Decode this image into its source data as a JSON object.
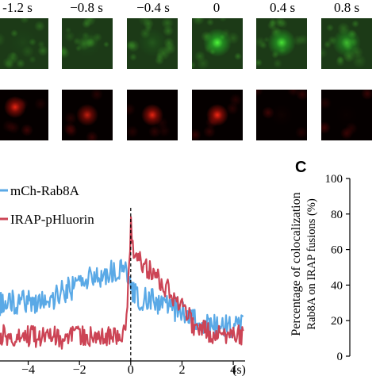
{
  "time_labels": [
    "-1.2 s",
    "−0.8 s",
    "−0.4 s",
    "0",
    "0.4 s",
    "0.8 s"
  ],
  "tiles": {
    "green_intensity": [
      0.05,
      0.08,
      0.15,
      0.95,
      0.85,
      0.65
    ],
    "red_intensity": [
      0.9,
      0.75,
      0.9,
      0.95,
      0.04,
      0.02
    ]
  },
  "colors": {
    "rab8a": "#5aa9e6",
    "irap": "#cc4455",
    "green": "#39e23a",
    "red": "#ff2a12"
  },
  "panel_c": {
    "letter": "C",
    "ylabel_line1": "Percentage of colocalization",
    "ylabel_line2": "Rab8A on IRAP fusions (%)",
    "ylim": [
      0,
      100
    ],
    "ticks": [
      "0",
      "20",
      "40",
      "60",
      "80",
      "100"
    ]
  },
  "chart_data": {
    "type": "line",
    "title": "",
    "xlabel": "(s)",
    "ylabel": "",
    "xlim": [
      -5.1,
      4.4
    ],
    "ylim": [
      0,
      1
    ],
    "x_ticks": [
      "−4",
      "−2",
      "0",
      "2",
      "4"
    ],
    "legend_position": "top-left",
    "event_marker_x": 0,
    "x": [
      -5.0,
      -4.5,
      -4.0,
      -3.5,
      -3.0,
      -2.5,
      -2.0,
      -1.5,
      -1.0,
      -0.5,
      -0.2,
      0.0,
      0.2,
      0.5,
      1.0,
      1.5,
      2.0,
      2.5,
      3.0,
      3.5,
      4.0,
      4.3
    ],
    "series": [
      {
        "name": "mCh-Rab8A",
        "values": [
          0.38,
          0.4,
          0.41,
          0.4,
          0.43,
          0.48,
          0.53,
          0.57,
          0.59,
          0.61,
          0.62,
          0.48,
          0.44,
          0.42,
          0.4,
          0.37,
          0.33,
          0.28,
          0.25,
          0.23,
          0.23,
          0.23
        ]
      },
      {
        "name": "IRAP-pHluorin",
        "values": [
          0.17,
          0.18,
          0.17,
          0.16,
          0.17,
          0.15,
          0.18,
          0.17,
          0.18,
          0.17,
          0.2,
          0.82,
          0.7,
          0.64,
          0.58,
          0.48,
          0.35,
          0.24,
          0.2,
          0.18,
          0.19,
          0.18
        ]
      }
    ]
  }
}
